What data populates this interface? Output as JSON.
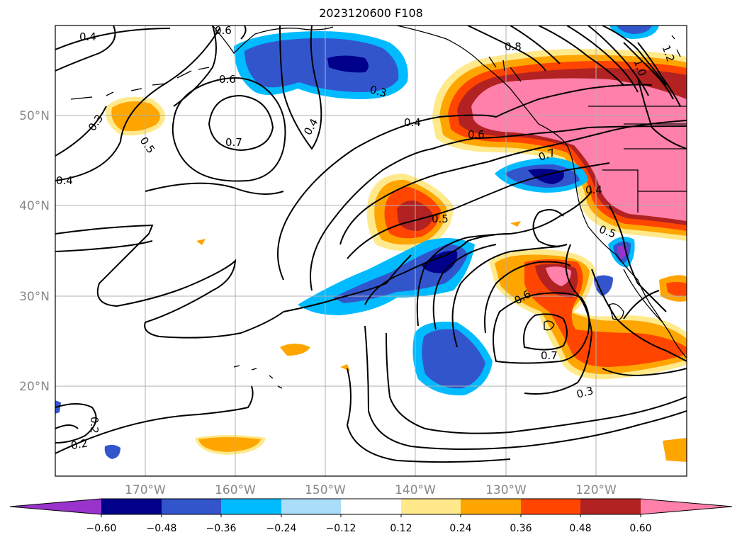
{
  "title": "2023120600 F108",
  "lat_labels": [
    "50°N",
    "40°N",
    "30°N",
    "20°N"
  ],
  "lon_labels": [
    "170°W",
    "160°W",
    "150°W",
    "140°W",
    "130°W",
    "120°W"
  ],
  "contour_labels": [
    "0.4",
    "0.6",
    "0.6",
    "0.7",
    "0.5",
    "0.3",
    "0.4",
    "0.3",
    "0.4",
    "0.6",
    "0.7",
    "0.4",
    "0.5",
    "0.5",
    "0.6",
    "0.7",
    "0.3",
    "0.2",
    "0.2",
    "0.4",
    "1.0",
    "1.2",
    "0.8"
  ],
  "colorbar": {
    "tick_labels": [
      "−0.60",
      "−0.48",
      "−0.36",
      "−0.24",
      "−0.12",
      "0.12",
      "0.24",
      "0.36",
      "0.48",
      "0.60"
    ],
    "colors": [
      "#9933cc",
      "#00008b",
      "#3355cc",
      "#00bbff",
      "#aaddf8",
      "#ffffff",
      "#ffe98a",
      "#ffa500",
      "#ff4500",
      "#b22222",
      "#ff80aa"
    ]
  }
}
